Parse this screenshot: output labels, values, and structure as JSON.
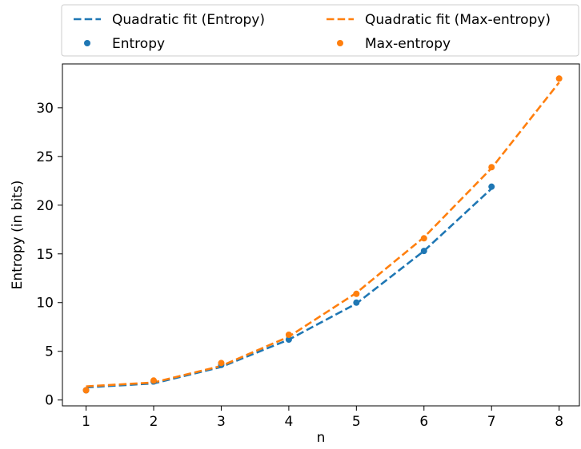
{
  "chart_data": {
    "type": "scatter",
    "xlabel": "n",
    "ylabel": "Entropy (in bits)",
    "xlim": [
      0.65,
      8.3
    ],
    "ylim": [
      -0.6,
      34.5
    ],
    "xticks": [
      1,
      2,
      3,
      4,
      5,
      6,
      7,
      8
    ],
    "yticks": [
      0,
      5,
      10,
      15,
      20,
      25,
      30
    ],
    "grid": false,
    "legend_placement": "top, two columns",
    "series": [
      {
        "name": "Entropy",
        "kind": "points",
        "color": "#1f77b4",
        "x": [
          1,
          2,
          3,
          4,
          5,
          6,
          7
        ],
        "y": [
          1.0,
          1.9,
          3.6,
          6.2,
          10.0,
          15.3,
          21.9
        ]
      },
      {
        "name": "Quadratic fit (Entropy)",
        "kind": "dashed-line",
        "color": "#1f77b4",
        "x": [
          1,
          2,
          3,
          4,
          5,
          6,
          7
        ],
        "y": [
          1.3,
          1.7,
          3.4,
          6.2,
          9.9,
          15.3,
          21.7
        ]
      },
      {
        "name": "Max-entropy",
        "kind": "points",
        "color": "#ff7f0e",
        "x": [
          1,
          2,
          3,
          4,
          5,
          6,
          7,
          8
        ],
        "y": [
          1.0,
          2.0,
          3.8,
          6.7,
          10.9,
          16.6,
          23.9,
          33.0
        ]
      },
      {
        "name": "Quadratic fit (Max-entropy)",
        "kind": "dashed-line",
        "color": "#ff7f0e",
        "x": [
          1,
          2,
          3,
          4,
          5,
          6,
          7,
          8
        ],
        "y": [
          1.4,
          1.8,
          3.5,
          6.5,
          11.0,
          16.7,
          23.8,
          32.6
        ]
      }
    ],
    "legend": [
      {
        "label": "Quadratic fit (Entropy)",
        "series": 1
      },
      {
        "label": "Quadratic fit (Max-entropy)",
        "series": 3
      },
      {
        "label": "Entropy",
        "series": 0
      },
      {
        "label": "Max-entropy",
        "series": 2
      }
    ]
  }
}
